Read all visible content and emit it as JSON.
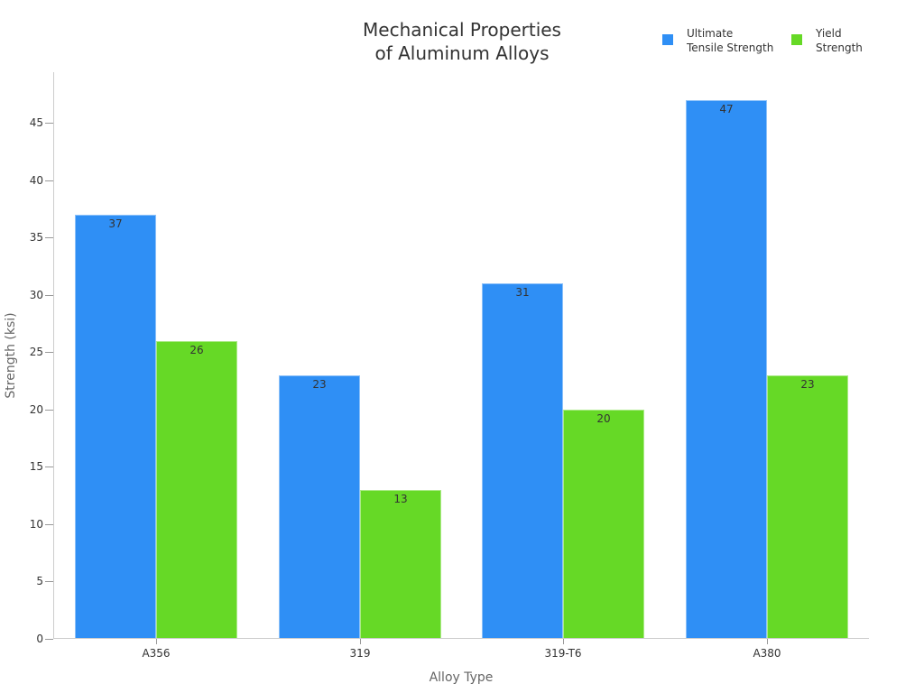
{
  "chart_data": {
    "type": "bar",
    "title": "Mechanical Properties of Aluminum Alloys",
    "title_lines": [
      "Mechanical Properties",
      "of Aluminum Alloys"
    ],
    "xlabel": "Alloy Type",
    "ylabel": "Strength (ksi)",
    "categories": [
      "A356",
      "319",
      "319-T6",
      "A380"
    ],
    "series": [
      {
        "name": "Ultimate Tensile Strength",
        "legend_lines": [
          "Ultimate",
          "Tensile Strength"
        ],
        "color": "#2f8ff5",
        "values": [
          37,
          23,
          31,
          47
        ]
      },
      {
        "name": "Yield Strength",
        "legend_lines": [
          "Yield",
          "Strength"
        ],
        "color": "#66d926",
        "values": [
          26,
          13,
          20,
          23
        ]
      }
    ],
    "ylim": [
      0,
      49.4
    ],
    "yticks": [
      0,
      5,
      10,
      15,
      20,
      25,
      30,
      35,
      40,
      45
    ],
    "grid": false,
    "legend_position": "top-right",
    "data_labels": true
  }
}
